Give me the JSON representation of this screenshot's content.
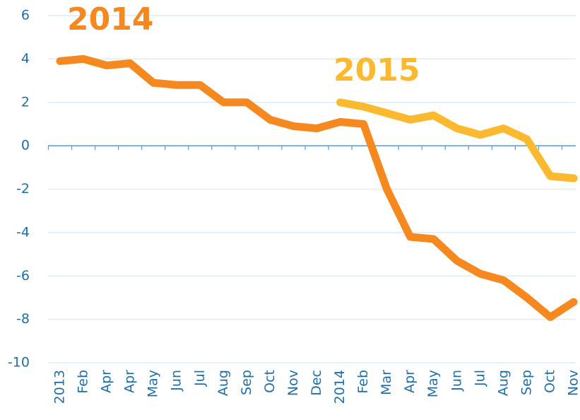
{
  "chart_data": {
    "type": "line",
    "categories": [
      "2013",
      "Feb",
      "Apr",
      "Apr",
      "May",
      "Jun",
      "Jul",
      "Aug",
      "Sep",
      "Oct",
      "Nov",
      "Dec",
      "2014",
      "Feb",
      "Mar",
      "Apr",
      "May",
      "Jun",
      "Jul",
      "Aug",
      "Sep",
      "Oct",
      "Nov"
    ],
    "series": [
      {
        "name": "2014",
        "color": "#f5881f",
        "values": [
          3.9,
          4.0,
          3.7,
          3.8,
          2.9,
          2.8,
          2.8,
          2.0,
          2.0,
          1.2,
          0.9,
          0.8,
          1.1,
          1.0,
          -2.0,
          -4.2,
          -4.3,
          -5.3,
          -5.9,
          -6.2,
          -7.0,
          -7.9,
          -7.2
        ]
      },
      {
        "name": "2015",
        "color": "#fbb92f",
        "values": [
          null,
          null,
          null,
          null,
          null,
          null,
          null,
          null,
          null,
          null,
          null,
          null,
          2.0,
          1.8,
          1.5,
          1.2,
          1.4,
          0.8,
          0.5,
          0.8,
          0.3,
          -1.4,
          -1.5
        ]
      }
    ],
    "ylim": [
      -10,
      6
    ],
    "yticks": [
      -10,
      -8,
      -6,
      -4,
      -2,
      0,
      2,
      4,
      6
    ],
    "grid": true
  }
}
